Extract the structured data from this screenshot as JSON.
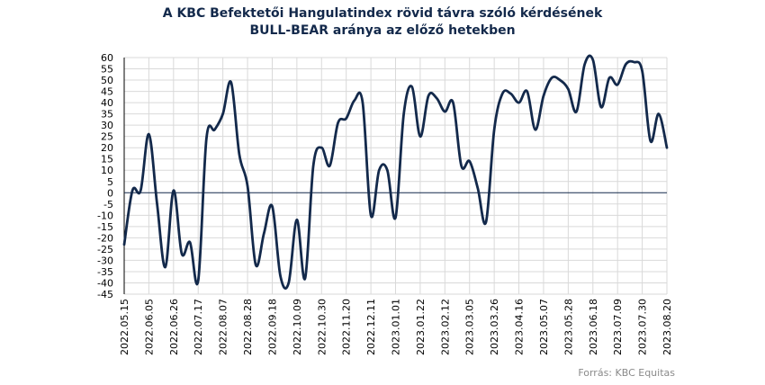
{
  "chart_data": {
    "type": "line",
    "title_line1": "A KBC Befektetői Hangulatindex  rövid távra szóló kérdésének",
    "title_line2": "BULL-BEAR aránya az előző hetekben",
    "source": "Forrás: KBC Equitas",
    "ylim": [
      -45,
      60
    ],
    "yticks": [
      60,
      55,
      50,
      45,
      40,
      35,
      30,
      25,
      20,
      15,
      10,
      5,
      0,
      -5,
      -10,
      -15,
      -20,
      -25,
      -30,
      -35,
      -40,
      -45
    ],
    "xlabels": [
      "2022.05.15",
      "2022.06.05",
      "2022.06.26",
      "2022.07.17",
      "2022.08.07",
      "2022.08.28",
      "2022.09.18",
      "2022.10.09",
      "2022.10.30",
      "2022.11.20",
      "2022.12.11",
      "2023.01.01",
      "2023.01.22",
      "2023.02.12",
      "2023.03.05",
      "2023.03.26",
      "2023.04.16",
      "2023.05.07",
      "2023.05.28",
      "2023.06.18",
      "2023.07.09",
      "2023.07.30",
      "2023.08.20"
    ],
    "grid": true,
    "line_color": "#13294b",
    "series": [
      {
        "x": [
          "2022.05.15",
          "2022.05.22",
          "2022.05.29",
          "2022.06.05",
          "2022.06.12",
          "2022.06.19",
          "2022.06.26",
          "2022.07.03",
          "2022.07.10",
          "2022.07.17",
          "2022.07.24",
          "2022.07.31",
          "2022.08.07",
          "2022.08.14",
          "2022.08.21",
          "2022.08.28",
          "2022.09.04",
          "2022.09.11",
          "2022.09.18",
          "2022.09.25",
          "2022.10.02",
          "2022.10.09",
          "2022.10.16",
          "2022.10.23",
          "2022.10.30",
          "2022.11.06",
          "2022.11.13",
          "2022.11.20",
          "2022.11.27",
          "2022.12.04",
          "2022.12.11",
          "2022.12.18",
          "2022.12.25",
          "2023.01.01",
          "2023.01.08",
          "2023.01.15",
          "2023.01.22",
          "2023.01.29",
          "2023.02.05",
          "2023.02.12",
          "2023.02.19",
          "2023.02.26",
          "2023.03.05",
          "2023.03.12",
          "2023.03.19",
          "2023.03.26",
          "2023.04.02",
          "2023.04.09",
          "2023.04.16",
          "2023.04.23",
          "2023.04.30",
          "2023.05.07",
          "2023.05.14",
          "2023.05.21",
          "2023.05.28",
          "2023.06.04",
          "2023.06.11",
          "2023.06.18",
          "2023.06.25",
          "2023.07.02",
          "2023.07.09",
          "2023.07.16",
          "2023.07.23",
          "2023.07.30",
          "2023.08.06",
          "2023.08.13",
          "2023.08.20"
        ],
        "values": [
          -23,
          1,
          1,
          26,
          -5,
          -33,
          1,
          -27,
          -22,
          -39,
          24,
          28,
          35,
          49,
          17,
          3,
          -32,
          -18,
          -6,
          -37,
          -40,
          -12,
          -38,
          12,
          20,
          12,
          31,
          33,
          41,
          40,
          -10,
          10,
          10,
          -11,
          35,
          47,
          25,
          43,
          42,
          36,
          40,
          12,
          14,
          2,
          -13,
          28,
          44,
          44,
          40,
          45,
          28,
          43,
          51,
          50,
          46,
          36,
          57,
          59,
          38,
          51,
          48,
          57,
          58,
          54,
          23,
          35,
          20
        ]
      }
    ]
  }
}
